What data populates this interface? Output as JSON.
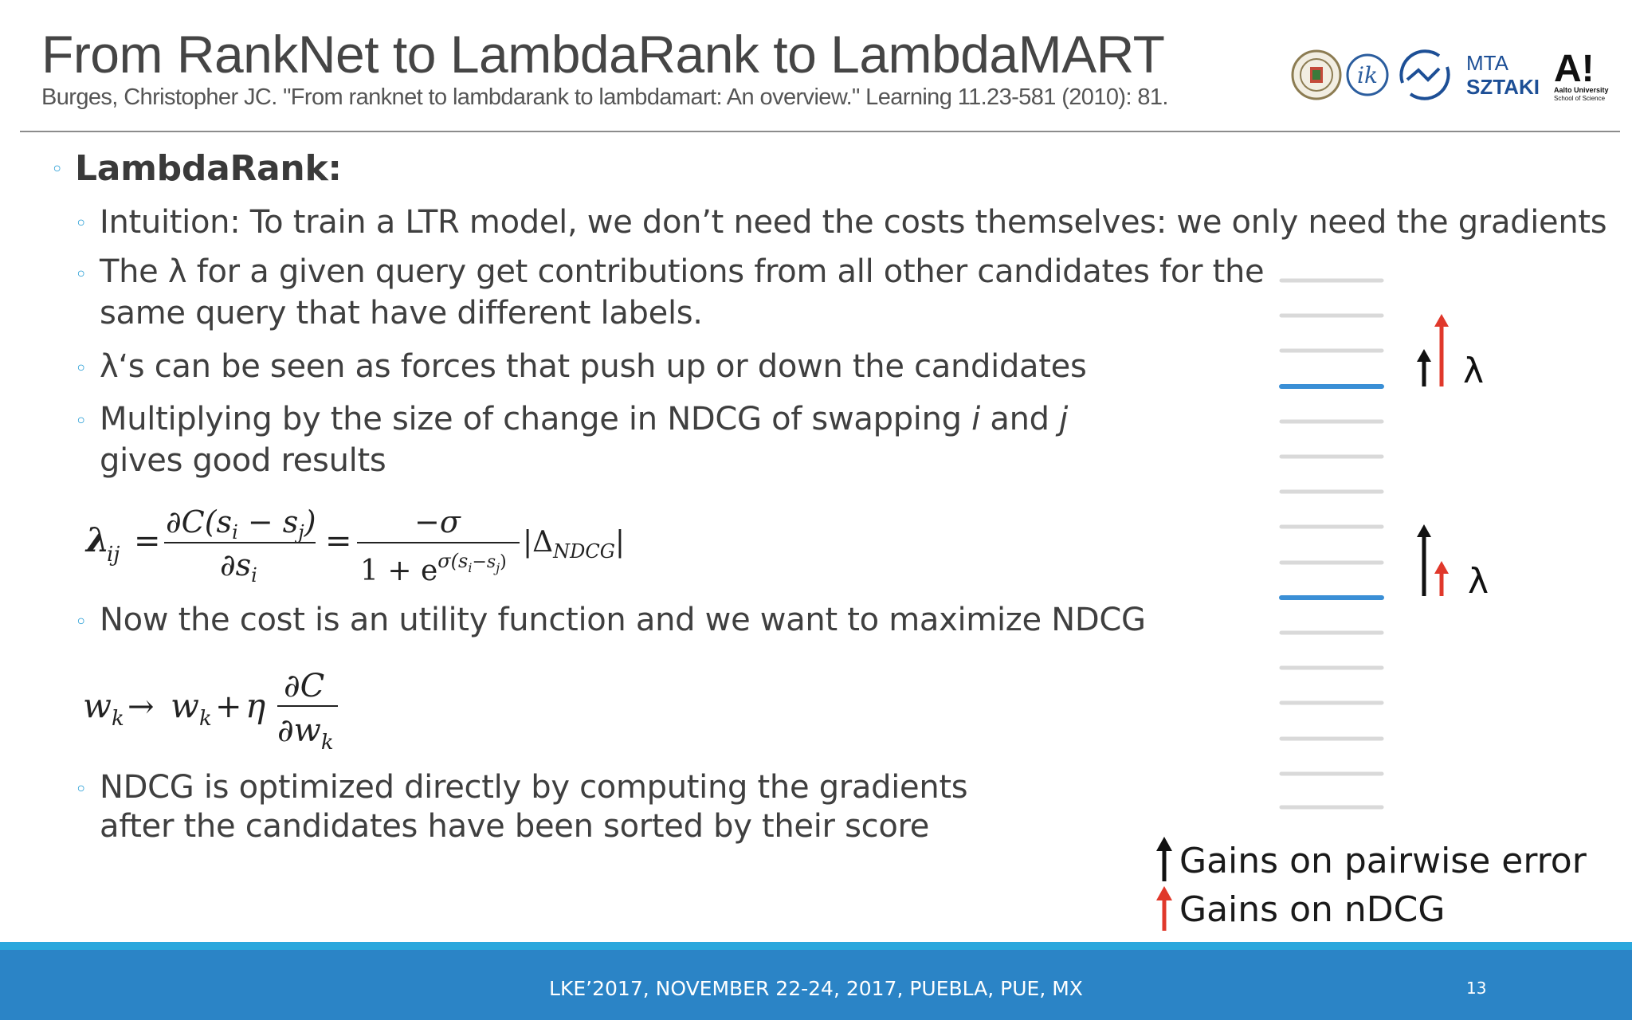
{
  "slide": {
    "title": "From RankNet to LambdaRank to LambdaMART",
    "citation": "Burges, Christopher JC. \"From ranknet to lambdarank to lambdamart: An overview.\" Learning 11.23-581 (2010): 81.",
    "heading": "LambdaRank:",
    "bullets": {
      "b1": "Intuition: To train a LTR model, we don’t need the costs themselves: we only need the gradients",
      "b2_line1": "The λ for a given query get contributions from all other candidates for the",
      "b2_line2": "same query that have different labels.",
      "b3": "λ‘s can be seen as forces that push up or down the candidates",
      "b4_pre": "Multiplying by the size of change in NDCG of swapping ",
      "b4_i": "i",
      "b4_and": " and ",
      "b4_j": "j",
      "b4_line2": "gives good results",
      "b5": "Now the cost is an utility function and we want to maximize NDCG",
      "b6_line1": "NDCG is optimized directly by computing the gradients",
      "b6_line2": "after the candidates have been sorted by their score"
    },
    "formula1": {
      "lhs": "λ",
      "lhs_sub": "ij",
      "num1": "∂C(s",
      "num1_i": "i",
      "num1_mid": " − s",
      "num1_j": "j",
      "num1_end": ")",
      "den1": "∂s",
      "den1_i": "i",
      "num2": "−σ",
      "den2": "1 + e",
      "den2_exp": "σ(s",
      "den2_exp_i": "i",
      "den2_exp_mid": "−s",
      "den2_exp_j": "j",
      "den2_exp_end": ")",
      "delta": "|Δ",
      "delta_sub": "NDCG",
      "delta_end": "|"
    },
    "formula2": {
      "w": "w",
      "k": "k",
      "arrow": "→",
      "plus": "+",
      "eta": "η",
      "num": "∂C",
      "den": "∂w"
    },
    "diagram": {
      "lambda_label_1": "λ",
      "lambda_label_2": "λ",
      "legend_black": "Gains on pairwise error",
      "legend_red": "Gains on nDCG",
      "colors": {
        "black_arrow": "#111111",
        "red_arrow": "#e0382b",
        "highlight_line": "#3a8fd6",
        "line": "#d9d9d9"
      }
    },
    "logos": {
      "mta": "MTA",
      "sztaki": "SZTAKI",
      "aalto_mark": "A!",
      "aalto_line1": "Aalto University",
      "aalto_line2": "School of Science",
      "ik": "ik"
    },
    "footer": {
      "event": "LKE’2017, NOVEMBER 22-24, 2017, PUEBLA, PUE, MX",
      "page": "13"
    }
  }
}
